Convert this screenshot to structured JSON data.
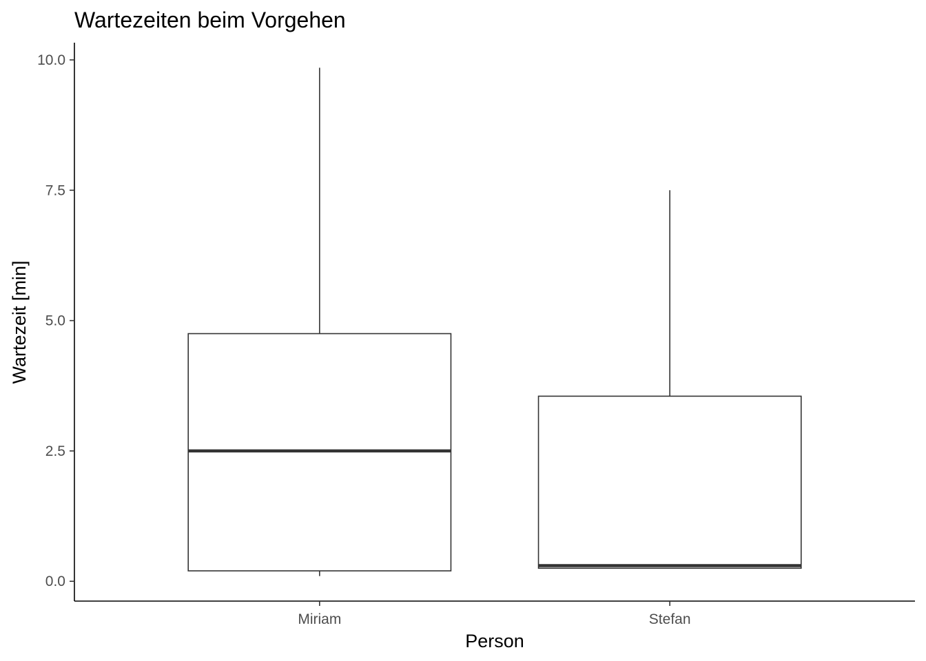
{
  "chart_data": {
    "type": "boxplot",
    "title": "Wartezeiten beim Vorgehen",
    "xlabel": "Person",
    "ylabel": "Wartezeit [min]",
    "ylim": [
      -0.38,
      10.33
    ],
    "yticks": [
      "0.0",
      "2.5",
      "5.0",
      "7.5",
      "10.0"
    ],
    "ytick_values": [
      0,
      2.5,
      5,
      7.5,
      10
    ],
    "grid": false,
    "categories": [
      "Miriam",
      "Stefan"
    ],
    "boxes": [
      {
        "category": "Miriam",
        "min": 0.1,
        "q1": 0.2,
        "median": 2.5,
        "q3": 4.75,
        "max": 9.85
      },
      {
        "category": "Stefan",
        "min": 0.25,
        "q1": 0.25,
        "median": 0.3,
        "q3": 3.55,
        "max": 7.5
      }
    ]
  }
}
